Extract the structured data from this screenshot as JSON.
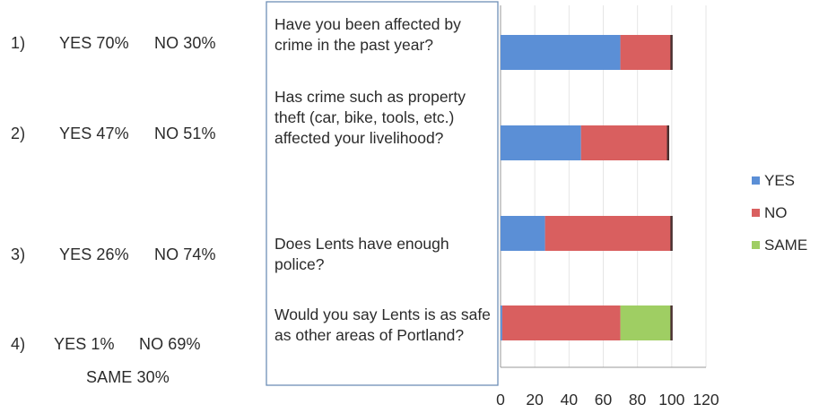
{
  "results": [
    {
      "num": "1)",
      "yes": "YES 70%",
      "no": "NO 30%"
    },
    {
      "num": "2)",
      "yes": "YES 47%",
      "no": "NO 51%"
    },
    {
      "num": "3)",
      "yes": "YES 26%",
      "no": "NO 74%"
    },
    {
      "num": "4)",
      "yes": "YES 1%",
      "no": "NO 69%",
      "same": "SAME 30%"
    }
  ],
  "chart_data": {
    "type": "bar",
    "orientation": "horizontal",
    "stacked": true,
    "categories": [
      "Have you been affected by crime in the past year?",
      "Has crime such as property theft (car, bike, tools, etc.) affected your livelihood?",
      "Does Lents have enough police?",
      "Would you say Lents is as safe as other areas of Portland?"
    ],
    "series": [
      {
        "name": "YES",
        "color": "#5b8fd6",
        "values": [
          70,
          47,
          26,
          1
        ]
      },
      {
        "name": "NO",
        "color": "#d95f5f",
        "values": [
          30,
          51,
          74,
          69
        ]
      },
      {
        "name": "SAME",
        "color": "#9fce63",
        "values": [
          0,
          0,
          0,
          30
        ]
      }
    ],
    "xlim": [
      0,
      120
    ],
    "xticks": [
      "0",
      "20",
      "40",
      "60",
      "80",
      "100",
      "120"
    ],
    "legend_position": "right",
    "grid": false
  }
}
